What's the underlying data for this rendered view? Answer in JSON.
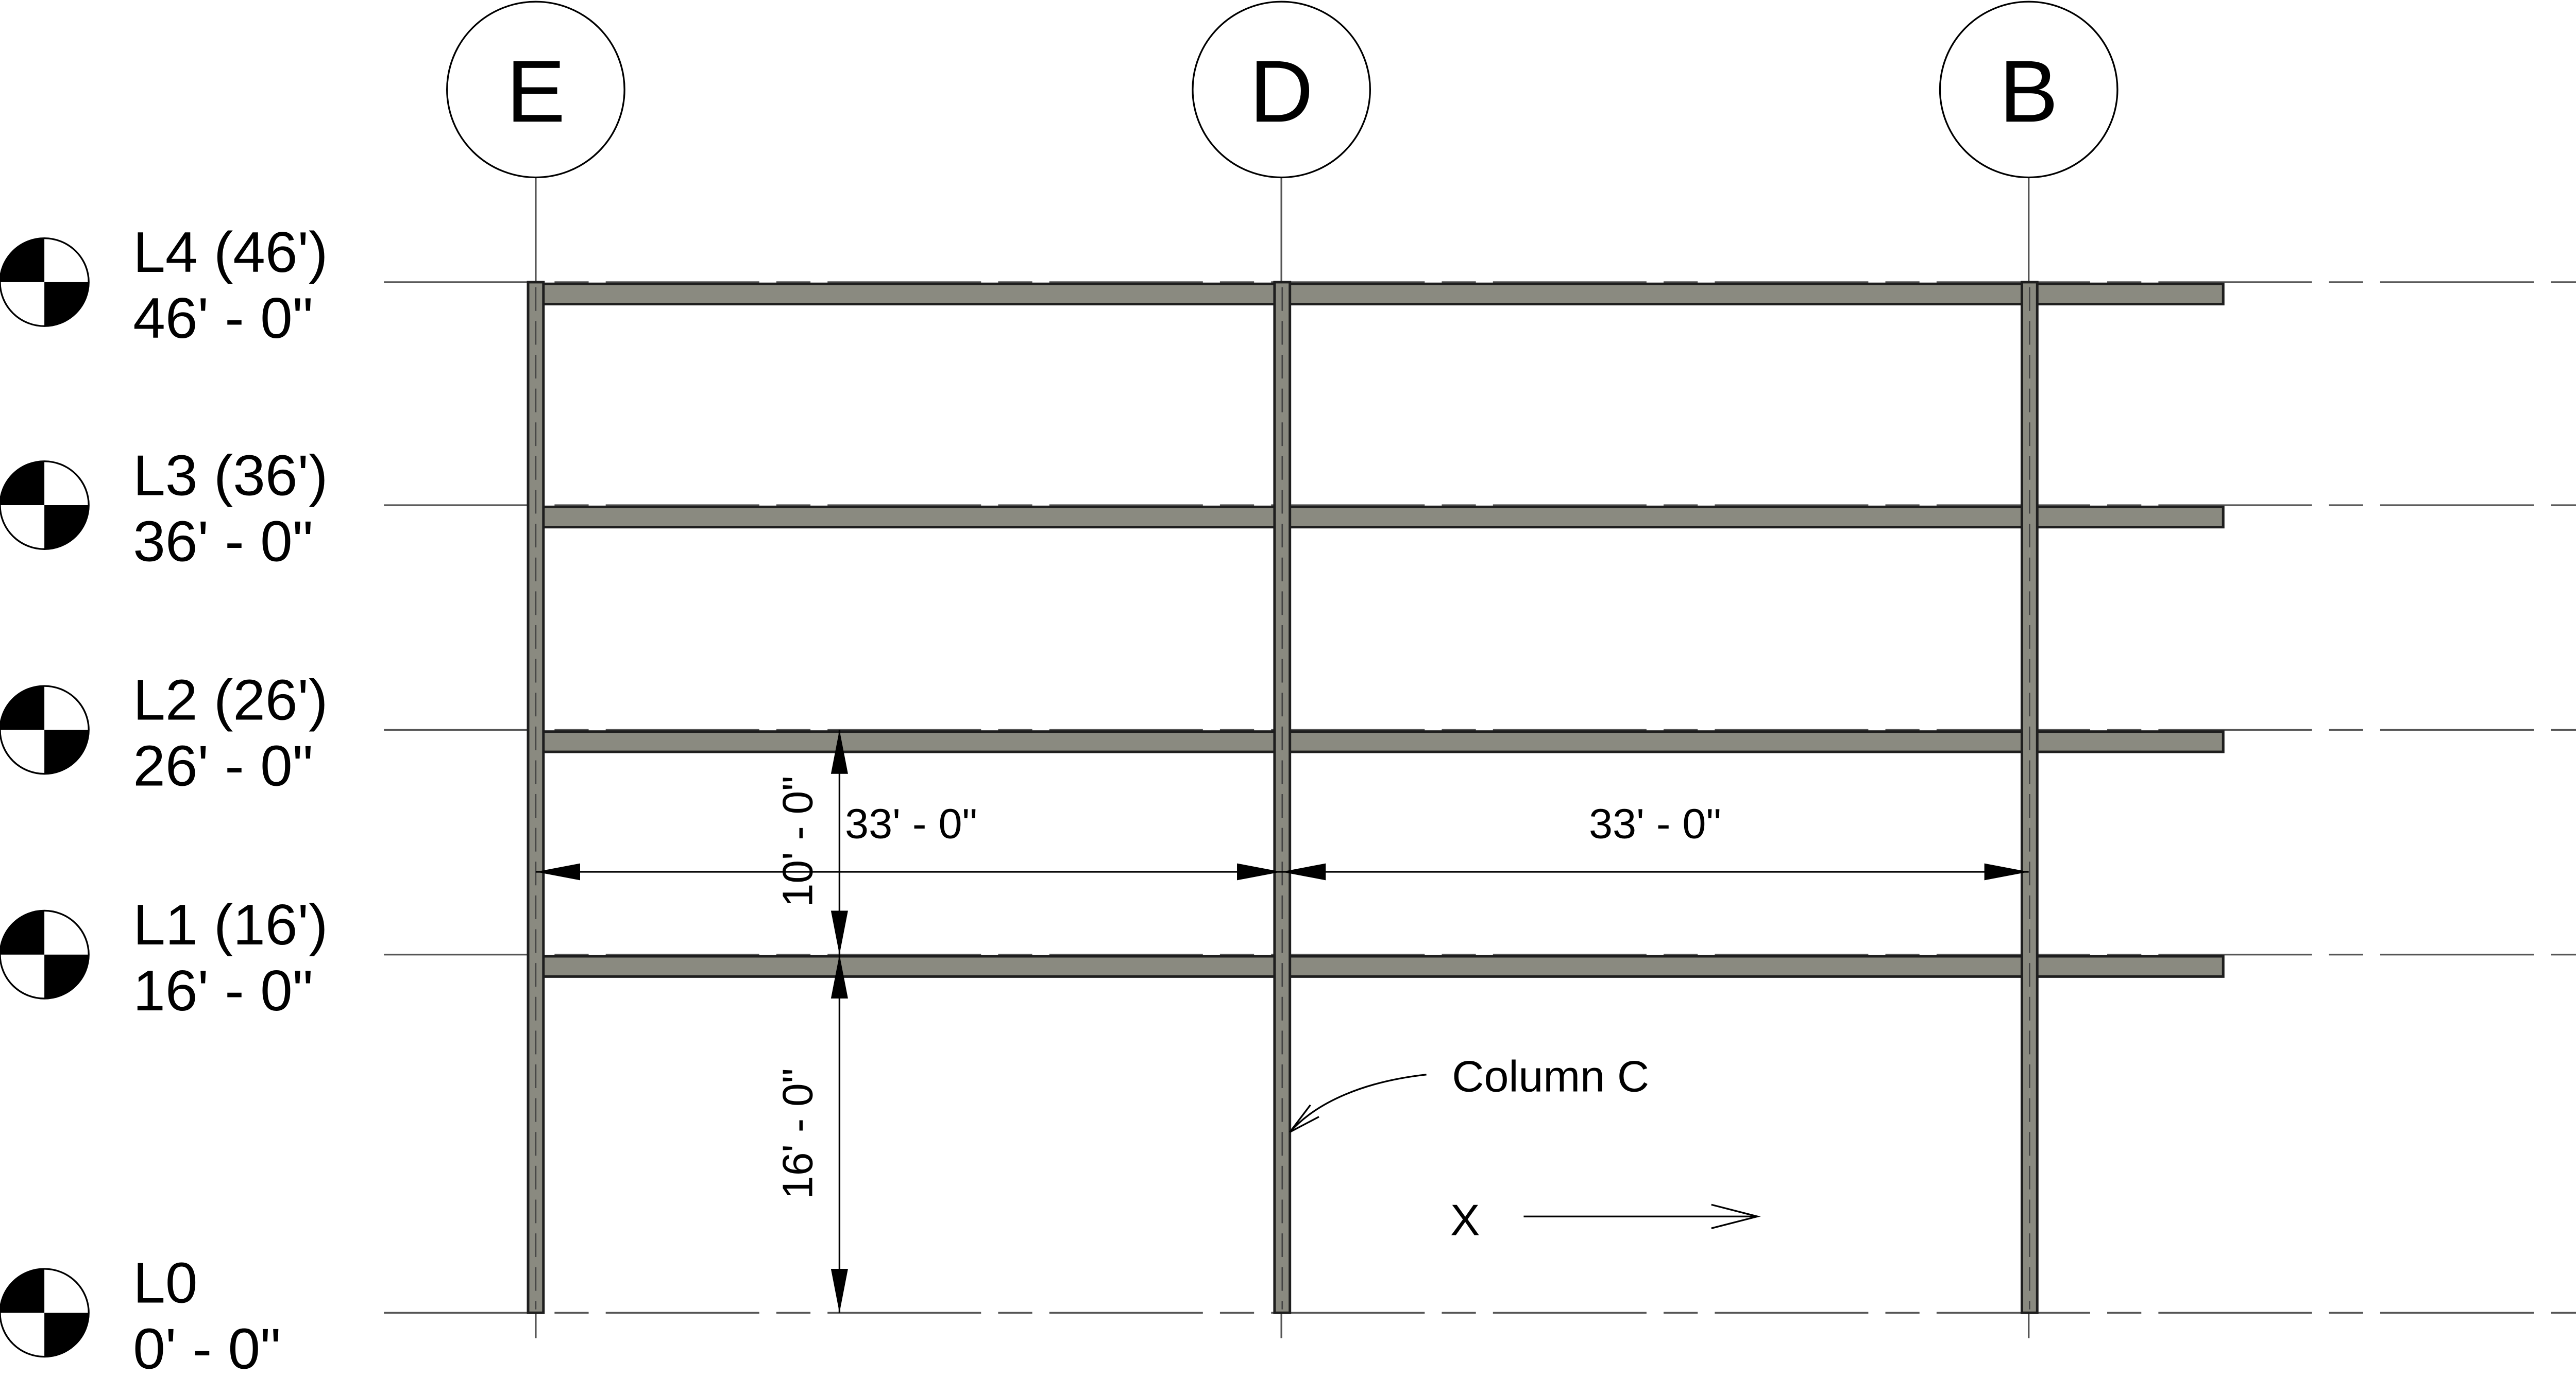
{
  "gridlines": [
    {
      "id": "E",
      "label": "E"
    },
    {
      "id": "D",
      "label": "D"
    },
    {
      "id": "B",
      "label": "B"
    }
  ],
  "levels": [
    {
      "id": "L4",
      "name": "L4 (46')",
      "elevation": "46' - 0\""
    },
    {
      "id": "L3",
      "name": "L3 (36')",
      "elevation": "36' - 0\""
    },
    {
      "id": "L2",
      "name": "L2 (26')",
      "elevation": "26' - 0\""
    },
    {
      "id": "L1",
      "name": "L1 (16')",
      "elevation": "16' - 0\""
    },
    {
      "id": "L0",
      "name": "L0",
      "elevation": "0' - 0\""
    }
  ],
  "dimensions": {
    "span_e_d": "33' - 0\"",
    "span_d_b": "33' - 0\"",
    "height_l1_l2": "10' - 0\"",
    "height_l0_l1": "16' - 0\""
  },
  "annotations": {
    "column_label": "Column C",
    "direction_label": "X"
  },
  "colors": {
    "member_fill": "#8a8a80",
    "member_edge": "#1e1e1e",
    "line": "#000000"
  }
}
